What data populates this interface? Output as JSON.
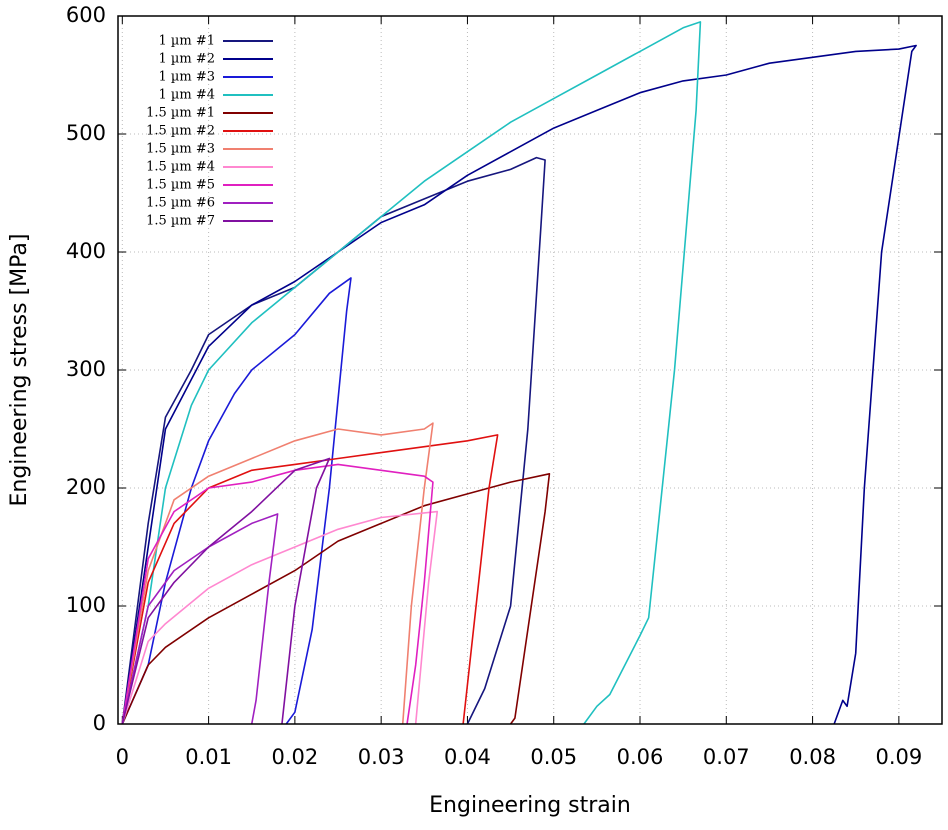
{
  "chart_data": {
    "type": "line",
    "x_label": "Engineering strain",
    "y_label": "Engineering stress [MPa]",
    "xlim": [
      -0.0005,
      0.095
    ],
    "ylim": [
      0,
      600
    ],
    "xticks": [
      0,
      0.01,
      0.02,
      0.03,
      0.04,
      0.05,
      0.06,
      0.07,
      0.08,
      0.09
    ],
    "yticks": [
      0,
      100,
      200,
      300,
      400,
      500,
      600
    ],
    "grid": true,
    "legend": "top-left",
    "series": [
      {
        "name": "1 µm #1",
        "color": "#16167e",
        "x": [
          0,
          0.003,
          0.005,
          0.008,
          0.01,
          0.015,
          0.02,
          0.025,
          0.03,
          0.035,
          0.04,
          0.045,
          0.048,
          0.049,
          0.0485,
          0.047,
          0.045,
          0.042,
          0.04
        ],
        "values": [
          0,
          170,
          260,
          300,
          330,
          355,
          370,
          400,
          430,
          445,
          460,
          470,
          480,
          478,
          420,
          250,
          100,
          30,
          0
        ]
      },
      {
        "name": "1 µm #2",
        "color": "#00008b",
        "x": [
          0,
          0.003,
          0.005,
          0.01,
          0.015,
          0.02,
          0.025,
          0.03,
          0.035,
          0.04,
          0.045,
          0.05,
          0.055,
          0.06,
          0.065,
          0.07,
          0.075,
          0.08,
          0.085,
          0.09,
          0.092,
          0.0915,
          0.088,
          0.086,
          0.085,
          0.084,
          0.0835,
          0.0825
        ],
        "values": [
          0,
          150,
          250,
          320,
          355,
          375,
          400,
          425,
          440,
          465,
          485,
          505,
          520,
          535,
          545,
          550,
          560,
          565,
          570,
          572,
          575,
          570,
          400,
          200,
          60,
          15,
          20,
          0
        ]
      },
      {
        "name": "1 µm #3",
        "color": "#1a1ad8",
        "x": [
          0,
          0.003,
          0.005,
          0.008,
          0.01,
          0.013,
          0.015,
          0.02,
          0.024,
          0.0265,
          0.026,
          0.024,
          0.022,
          0.02,
          0.019
        ],
        "values": [
          0,
          50,
          120,
          200,
          240,
          280,
          300,
          330,
          365,
          378,
          350,
          200,
          80,
          10,
          0
        ]
      },
      {
        "name": "1 µm #4",
        "color": "#20c0c0",
        "x": [
          0,
          0.003,
          0.005,
          0.008,
          0.01,
          0.015,
          0.02,
          0.025,
          0.03,
          0.035,
          0.04,
          0.045,
          0.05,
          0.055,
          0.06,
          0.065,
          0.067,
          0.0665,
          0.064,
          0.061,
          0.06,
          0.0565,
          0.055,
          0.0535
        ],
        "values": [
          0,
          100,
          200,
          270,
          300,
          340,
          370,
          400,
          430,
          460,
          485,
          510,
          530,
          550,
          570,
          590,
          595,
          520,
          300,
          90,
          75,
          25,
          15,
          0
        ]
      },
      {
        "name": "1.5 µm #1",
        "color": "#800000",
        "x": [
          0,
          0.003,
          0.005,
          0.01,
          0.015,
          0.02,
          0.025,
          0.03,
          0.035,
          0.04,
          0.045,
          0.0495,
          0.049,
          0.047,
          0.0455,
          0.045
        ],
        "values": [
          0,
          50,
          65,
          90,
          110,
          130,
          155,
          170,
          185,
          195,
          205,
          212,
          180,
          80,
          5,
          0
        ]
      },
      {
        "name": "1.5 µm #2",
        "color": "#e01010",
        "x": [
          0,
          0.003,
          0.006,
          0.01,
          0.015,
          0.02,
          0.025,
          0.03,
          0.035,
          0.04,
          0.0435,
          0.0425,
          0.041,
          0.0395
        ],
        "values": [
          0,
          120,
          170,
          200,
          215,
          220,
          225,
          230,
          235,
          240,
          245,
          200,
          100,
          0
        ]
      },
      {
        "name": "1.5 µm #3",
        "color": "#f08070",
        "x": [
          0,
          0.003,
          0.006,
          0.01,
          0.015,
          0.02,
          0.025,
          0.03,
          0.035,
          0.036,
          0.035,
          0.0335,
          0.0325
        ],
        "values": [
          0,
          130,
          190,
          210,
          225,
          240,
          250,
          245,
          250,
          255,
          200,
          100,
          0
        ]
      },
      {
        "name": "1.5 µm #4",
        "color": "#ff88d0",
        "x": [
          0,
          0.003,
          0.005,
          0.01,
          0.015,
          0.02,
          0.025,
          0.03,
          0.0365,
          0.0355,
          0.0345,
          0.034
        ],
        "values": [
          0,
          70,
          85,
          115,
          135,
          150,
          165,
          175,
          180,
          120,
          40,
          0
        ]
      },
      {
        "name": "1.5 µm #5",
        "color": "#e020c0",
        "x": [
          0,
          0.003,
          0.006,
          0.01,
          0.015,
          0.02,
          0.025,
          0.03,
          0.035,
          0.036,
          0.035,
          0.034,
          0.033
        ],
        "values": [
          0,
          140,
          180,
          200,
          205,
          215,
          220,
          215,
          210,
          205,
          120,
          50,
          0
        ]
      },
      {
        "name": "1.5 µm #6",
        "color": "#a020c0",
        "x": [
          0,
          0.003,
          0.006,
          0.01,
          0.015,
          0.018,
          0.017,
          0.0155,
          0.015
        ],
        "values": [
          0,
          100,
          130,
          150,
          170,
          178,
          120,
          20,
          0
        ]
      },
      {
        "name": "1.5 µm #7",
        "color": "#8010a0",
        "x": [
          0,
          0.003,
          0.006,
          0.01,
          0.015,
          0.02,
          0.024,
          0.0225,
          0.02,
          0.0185
        ],
        "values": [
          0,
          90,
          120,
          150,
          180,
          215,
          225,
          200,
          100,
          0
        ]
      }
    ]
  }
}
